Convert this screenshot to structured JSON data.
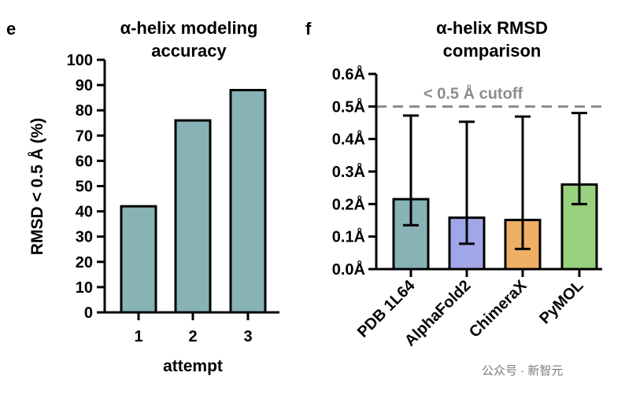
{
  "watermark": "公众号 · 新智元",
  "chart_data": [
    {
      "panel": "e",
      "type": "bar",
      "title": [
        "α-helix modeling",
        "accuracy"
      ],
      "xlabel": "attempt",
      "ylabel": "RMSD < 0.5 Å (%)",
      "categories": [
        "1",
        "2",
        "3"
      ],
      "values": [
        42,
        76,
        88
      ],
      "ylim": [
        0,
        100
      ],
      "yticks": [
        0,
        10,
        20,
        30,
        40,
        50,
        60,
        70,
        80,
        90,
        100
      ],
      "bar_color": "#87b3b6",
      "grid": false
    },
    {
      "panel": "f",
      "type": "bar",
      "title": [
        "α-helix RMSD",
        "comparison"
      ],
      "xlabel": "",
      "ylabel": "",
      "categories": [
        "PDB 1L64",
        "AlphaFold2",
        "ChimeraX",
        "PyMOL"
      ],
      "values": [
        0.215,
        0.158,
        0.151,
        0.26
      ],
      "error_low": [
        0.135,
        0.078,
        0.062,
        0.2
      ],
      "error_high": [
        0.472,
        0.453,
        0.469,
        0.48
      ],
      "bar_colors": [
        "#87b3b6",
        "#a1a6e8",
        "#efb065",
        "#97d17e"
      ],
      "ylim": [
        0,
        0.6
      ],
      "yticks": [
        0,
        0.1,
        0.2,
        0.3,
        0.4,
        0.5,
        0.6
      ],
      "ytick_labels": [
        "0.0Å",
        "0.1Å",
        "0.2Å",
        "0.3Å",
        "0.4Å",
        "0.5Å",
        "0.6Å"
      ],
      "reference_line": {
        "value": 0.5,
        "label": "< 0.5 Å cutoff",
        "color": "#8c8c8c",
        "style": "dashed"
      },
      "grid": false
    }
  ]
}
